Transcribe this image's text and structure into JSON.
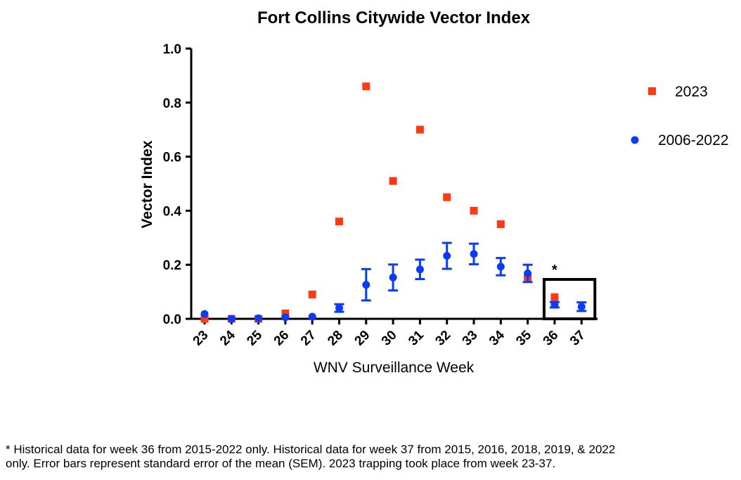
{
  "chart_data": {
    "type": "scatter",
    "title": "Fort Collins Citywide Vector Index",
    "xlabel": "WNV Surveillance Week",
    "ylabel": "Vector Index",
    "categories": [
      "23",
      "24",
      "25",
      "26",
      "27",
      "28",
      "29",
      "30",
      "31",
      "32",
      "33",
      "34",
      "35",
      "36",
      "37"
    ],
    "ylim": [
      0,
      1.0
    ],
    "yticks": [
      "0.0",
      "0.2",
      "0.4",
      "0.6",
      "0.8",
      "1.0"
    ],
    "grid": false,
    "legend_position": "right",
    "series": [
      {
        "name": "2023",
        "marker": "square",
        "color": "#FF3A12",
        "values": [
          0.0,
          0.0,
          0.0,
          0.02,
          0.09,
          0.36,
          0.86,
          0.51,
          0.7,
          0.45,
          0.4,
          0.35,
          0.15,
          0.08,
          null
        ]
      },
      {
        "name": "2006-2022",
        "marker": "circle",
        "color": "#0A3CF5",
        "values": [
          0.018,
          0.0,
          0.002,
          0.006,
          0.008,
          0.04,
          0.126,
          0.153,
          0.183,
          0.233,
          0.24,
          0.193,
          0.168,
          0.052,
          0.045
        ],
        "error": [
          0.0,
          0.0,
          0.0,
          0.0,
          0.0,
          0.014,
          0.058,
          0.048,
          0.036,
          0.048,
          0.038,
          0.032,
          0.032,
          0.01,
          0.016
        ]
      }
    ],
    "annotation": {
      "text": "*",
      "category": "36"
    }
  },
  "footnote": "* Historical data for week 36 from 2015-2022 only. Historical data for week 37 from 2015, 2016, 2018, 2019, & 2022\nonly. Error bars represent standard error of the mean (SEM). 2023 trapping took place from week 23-37."
}
